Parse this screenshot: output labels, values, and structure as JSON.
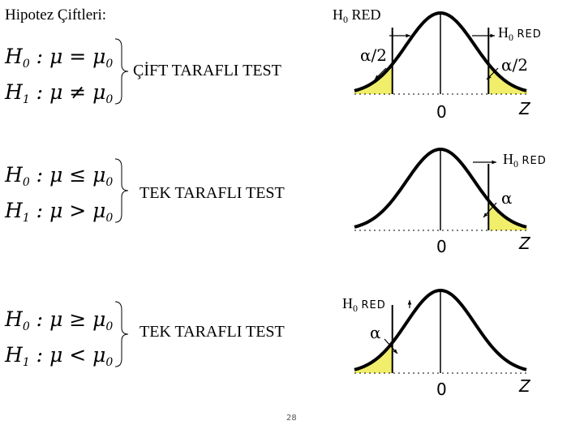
{
  "title": "Hipotez Çiftleri:",
  "pairs": [
    {
      "h0": {
        "lhs": "H",
        "sub": "0",
        "rel": "="
      },
      "h1": {
        "lhs": "H",
        "sub": "1",
        "rel": "≠"
      },
      "mu": "μ",
      "mu0_sub": "0",
      "test": "ÇİFT TARAFLI TEST"
    },
    {
      "h0": {
        "lhs": "H",
        "sub": "0",
        "rel": "≤"
      },
      "h1": {
        "lhs": "H",
        "sub": "1",
        "rel": ">"
      },
      "mu": "μ",
      "mu0_sub": "0",
      "test": "TEK TARAFLI TEST"
    },
    {
      "h0": {
        "lhs": "H",
        "sub": "0",
        "rel": "≥"
      },
      "h1": {
        "lhs": "H",
        "sub": "1",
        "rel": "<"
      },
      "mu": "μ",
      "mu0_sub": "0",
      "test": "TEK TARAFLI TEST"
    }
  ],
  "charts": [
    {
      "rejection": "two-sided",
      "red_labels": [
        {
          "main": "H",
          "sub": "0",
          "word": "RED"
        },
        {
          "main": "H",
          "sub": "0",
          "word": "RED"
        }
      ],
      "alpha_labels": [
        "α/2",
        "α/2"
      ],
      "center_label": "0",
      "axis_label": "Z"
    },
    {
      "rejection": "right",
      "red_labels": [
        {
          "main": "H",
          "sub": "0",
          "word": "RED"
        }
      ],
      "alpha_labels": [
        "α"
      ],
      "center_label": "0",
      "axis_label": "Z"
    },
    {
      "rejection": "left",
      "red_labels": [
        {
          "main": "H",
          "sub": "0",
          "word": "RED"
        }
      ],
      "alpha_labels": [
        "α"
      ],
      "center_label": "0",
      "axis_label": "Z"
    }
  ],
  "colors": {
    "fill": "#f0ee6a",
    "line": "#000000"
  },
  "page_number": "28"
}
